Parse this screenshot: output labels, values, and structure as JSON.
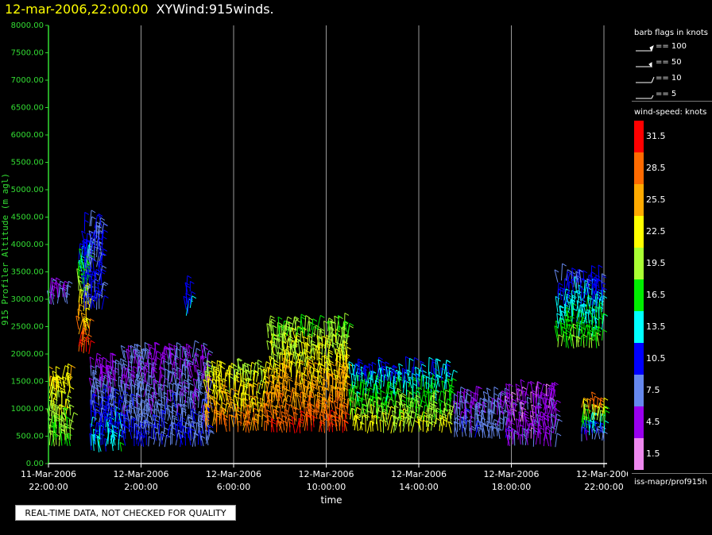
{
  "header": {
    "timestamp": "12-mar-2006,22:00:00",
    "plot_name": "XYWind:915winds."
  },
  "notice": "REAL-TIME DATA, NOT CHECKED FOR QUALITY",
  "legend": {
    "barb_title": "barb flags in knots",
    "barbs": [
      {
        "label": "== 100",
        "icon": "pennant-flag"
      },
      {
        "label": "== 50",
        "icon": "pennant-flag-small"
      },
      {
        "label": "== 10",
        "icon": "full-barb"
      },
      {
        "label": "== 5",
        "icon": "half-barb"
      }
    ],
    "speed_title": "wind-speed: knots",
    "scale": [
      {
        "label": "31.5",
        "color": "#ff0000"
      },
      {
        "label": "28.5",
        "color": "#ff6a00"
      },
      {
        "label": "25.5",
        "color": "#ffaa00"
      },
      {
        "label": "22.5",
        "color": "#ffff00"
      },
      {
        "label": "19.5",
        "color": "#aaff33"
      },
      {
        "label": "16.5",
        "color": "#00ee00"
      },
      {
        "label": "13.5",
        "color": "#00ffff"
      },
      {
        "label": "10.5",
        "color": "#0000ff"
      },
      {
        "label": "7.5",
        "color": "#6688ee"
      },
      {
        "label": "4.5",
        "color": "#9900ee"
      },
      {
        "label": "1.5",
        "color": "#ee88ee"
      }
    ],
    "source": "iss-mapr/prof915h"
  },
  "chart_data": {
    "type": "scatter",
    "xlabel": "time",
    "ylabel": "915 Profiler Altitude (m agl)",
    "ylim": [
      0,
      8000
    ],
    "xlim": [
      "11-Mar-2006 22:00:00",
      "12-Mar-2006 22:00:00"
    ],
    "y_ticks": [
      "0.00",
      "500.00",
      "1000.00",
      "1500.00",
      "2000.00",
      "2500.00",
      "3000.00",
      "3500.00",
      "4000.00",
      "4500.00",
      "5000.00",
      "5500.00",
      "6000.00",
      "6500.00",
      "7000.00",
      "7500.00",
      "8000.00"
    ],
    "x_ticks": [
      {
        "hour": 0,
        "date": "11-Mar-2006",
        "time": "22:00:00"
      },
      {
        "hour": 4,
        "date": "12-Mar-2006",
        "time": "2:00:00"
      },
      {
        "hour": 8,
        "date": "12-Mar-2006",
        "time": "6:00:00"
      },
      {
        "hour": 12,
        "date": "12-Mar-2006",
        "time": "10:00:00"
      },
      {
        "hour": 16,
        "date": "12-Mar-2006",
        "time": "14:00:00"
      },
      {
        "hour": 20,
        "date": "12-Mar-2006",
        "time": "18:00:00"
      },
      {
        "hour": 24,
        "date": "12-Mar-2006",
        "time": "22:00:00"
      }
    ],
    "grid": "vertical lines at tick times",
    "series": [
      {
        "from_h": 0.0,
        "to_h": 1.0,
        "alt_lo": 300,
        "alt_hi": 1600,
        "speed": [
          17,
          24
        ],
        "extra": [
          {
            "alt_lo": 2900,
            "alt_hi": 3200,
            "speed": [
              8,
              5
            ]
          }
        ]
      },
      {
        "from_h": 1.3,
        "to_h": 1.8,
        "alt_lo": 2000,
        "alt_hi": 3900,
        "speed": [
          30,
          12
        ]
      },
      {
        "from_h": 1.5,
        "to_h": 2.4,
        "alt_lo": 2800,
        "alt_hi": 4400,
        "speed": [
          10,
          9
        ]
      },
      {
        "from_h": 1.8,
        "to_h": 3.2,
        "alt_lo": 200,
        "alt_hi": 1800,
        "speed": [
          14,
          4
        ]
      },
      {
        "from_h": 3.2,
        "to_h": 7.0,
        "alt_lo": 300,
        "alt_hi": 2000,
        "speed": [
          9,
          5
        ]
      },
      {
        "from_h": 5.9,
        "to_h": 6.2,
        "alt_lo": 2700,
        "alt_hi": 3200,
        "speed": [
          12,
          12
        ]
      },
      {
        "from_h": 6.8,
        "to_h": 9.5,
        "alt_lo": 550,
        "alt_hi": 1700,
        "speed": [
          28,
          20
        ]
      },
      {
        "from_h": 9.5,
        "to_h": 13.0,
        "alt_lo": 550,
        "alt_hi": 2500,
        "speed": [
          30,
          18
        ]
      },
      {
        "from_h": 13.0,
        "to_h": 17.5,
        "alt_lo": 550,
        "alt_hi": 1700,
        "speed": [
          22,
          11
        ]
      },
      {
        "from_h": 17.5,
        "to_h": 19.8,
        "alt_lo": 450,
        "alt_hi": 1200,
        "speed": [
          8,
          6
        ]
      },
      {
        "from_h": 19.8,
        "to_h": 22.0,
        "alt_lo": 300,
        "alt_hi": 1300,
        "speed": [
          5,
          4
        ]
      },
      {
        "from_h": 22.0,
        "to_h": 24.0,
        "alt_lo": 2100,
        "alt_hi": 3400,
        "speed": [
          18,
          9
        ]
      },
      {
        "from_h": 23.0,
        "to_h": 24.1,
        "alt_lo": 400,
        "alt_hi": 1100,
        "speed": [
          6,
          31
        ]
      }
    ]
  }
}
